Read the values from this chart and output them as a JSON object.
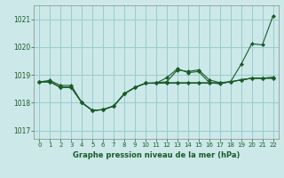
{
  "title": "Graphe pression niveau de la mer (hPa)",
  "bg_color": "#cce8e8",
  "grid_color": "#99cccc",
  "line_color": "#1a5c2a",
  "xlim": [
    -0.5,
    22.5
  ],
  "ylim": [
    1016.7,
    1021.5
  ],
  "yticks": [
    1017,
    1018,
    1019,
    1020,
    1021
  ],
  "xticks": [
    0,
    1,
    2,
    3,
    4,
    5,
    6,
    7,
    8,
    9,
    10,
    11,
    12,
    13,
    14,
    15,
    16,
    17,
    18,
    19,
    20,
    21,
    22
  ],
  "series": [
    [
      1018.75,
      1018.75,
      1018.55,
      1018.55,
      1018.0,
      1017.72,
      1017.75,
      1017.88,
      1018.32,
      1018.55,
      1018.7,
      1018.72,
      1018.75,
      1019.18,
      1019.12,
      1019.18,
      1018.82,
      1018.72,
      1018.75,
      1019.38,
      1020.12,
      1020.08,
      1021.12
    ],
    [
      1018.75,
      1018.75,
      1018.55,
      1018.55,
      1018.0,
      1017.72,
      1017.75,
      1017.88,
      1018.32,
      1018.55,
      1018.7,
      1018.7,
      1018.9,
      1019.22,
      1019.08,
      1019.12,
      1018.72,
      1018.68,
      1018.75,
      1018.82,
      1018.88,
      1018.88,
      1018.88
    ],
    [
      1018.75,
      1018.8,
      1018.62,
      1018.62,
      1018.0,
      1017.72,
      1017.75,
      1017.88,
      1018.32,
      1018.55,
      1018.7,
      1018.7,
      1018.7,
      1018.7,
      1018.7,
      1018.7,
      1018.7,
      1018.7,
      1018.75,
      1018.82,
      1018.88,
      1018.88,
      1018.92
    ],
    [
      1018.75,
      1018.75,
      1018.55,
      1018.55,
      1018.0,
      1017.72,
      1017.75,
      1017.88,
      1018.32,
      1018.55,
      1018.7,
      1018.7,
      1018.72,
      1018.72,
      1018.72,
      1018.72,
      1018.72,
      1018.72,
      1018.75,
      1018.82,
      1018.88,
      1018.88,
      1018.88
    ]
  ]
}
